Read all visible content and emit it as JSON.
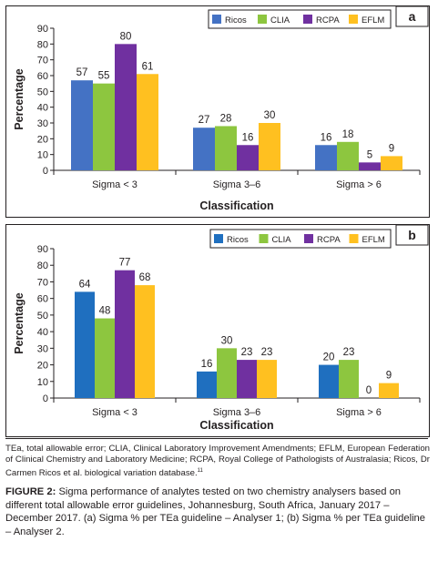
{
  "chart_data": [
    {
      "panel_letter": "a",
      "type": "bar",
      "categories": [
        "Sigma < 3",
        "Sigma 3–6",
        "Sigma > 6"
      ],
      "series": [
        {
          "name": "Ricos",
          "color": "#4472c4",
          "values": [
            57,
            27,
            16
          ]
        },
        {
          "name": "CLIA",
          "color": "#8dc63f",
          "values": [
            55,
            28,
            18
          ]
        },
        {
          "name": "RCPA",
          "color": "#7030a0",
          "values": [
            80,
            16,
            5
          ]
        },
        {
          "name": "EFLM",
          "color": "#ffc020",
          "values": [
            61,
            30,
            9
          ]
        }
      ],
      "ylabel": "Percentage",
      "xlabel": "Classification",
      "ylim": [
        0,
        90
      ],
      "yticks": [
        "0",
        "10",
        "20",
        "30",
        "40",
        "50",
        "60",
        "70",
        "80",
        "90"
      ],
      "grid": false,
      "legend": "top-right"
    },
    {
      "panel_letter": "b",
      "type": "bar",
      "categories": [
        "Sigma < 3",
        "Sigma 3–6",
        "Sigma > 6"
      ],
      "series": [
        {
          "name": "Ricos",
          "color": "#1f6fbf",
          "values": [
            64,
            16,
            20
          ]
        },
        {
          "name": "CLIA",
          "color": "#8dc63f",
          "values": [
            48,
            30,
            23
          ]
        },
        {
          "name": "RCPA",
          "color": "#7030a0",
          "values": [
            77,
            23,
            0
          ]
        },
        {
          "name": "EFLM",
          "color": "#ffc020",
          "values": [
            68,
            23,
            9
          ]
        }
      ],
      "ylabel": "Percentage",
      "xlabel": "Classification",
      "ylim": [
        0,
        90
      ],
      "yticks": [
        "0",
        "10",
        "20",
        "30",
        "40",
        "50",
        "60",
        "70",
        "80",
        "90"
      ],
      "grid": false,
      "legend": "top-right"
    }
  ],
  "footnote": {
    "text": "TEa, total allowable error; CLIA, Clinical Laboratory Improvement Amendments; EFLM, European Federation of Clinical Chemistry and Laboratory Medicine; RCPA, Royal College of Pathologists of Australasia; Ricos, Dr Carmen Ricos et al. biological variation database.",
    "ref": "11"
  },
  "caption": {
    "label": "FIGURE 2:",
    "text": "Sigma performance of analytes tested on two chemistry analysers based on different total allowable error guidelines, Johannesburg, South Africa, January 2017 – December 2017. (a) Sigma % per TEa guideline – Analyser 1; (b) Sigma % per TEa guideline – Analyser 2."
  }
}
